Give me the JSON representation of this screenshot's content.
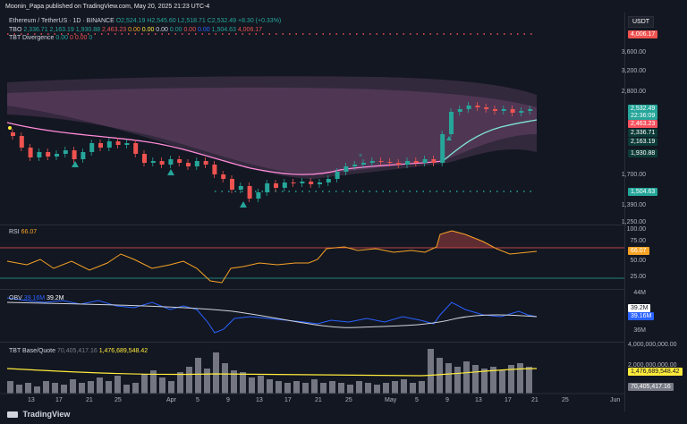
{
  "header": {
    "publisher": "Moonin_Papa published on TradingView.com, May 20, 2025 21:23 UTC-4"
  },
  "symbol": {
    "name": "Ethereum / TetherUS · 1D · BINANCE",
    "o": "O2,524.19",
    "h": "H2,545.60",
    "l": "L2,518.71",
    "c": "C2,532.49",
    "chg": "+8.30 (+0.33%)"
  },
  "indicators": {
    "tbo": {
      "name": "TBO",
      "values": [
        "2,336.71",
        "2,163.19",
        "1,930.88",
        "2,463.23",
        "0.00",
        "0.00",
        "0.00",
        "0.00",
        "0.00",
        "0.00",
        "1,504.63",
        "4,006.17"
      ]
    },
    "div": {
      "name": "TBT Divergence",
      "values": [
        "0.00",
        "0",
        "0.00",
        "0"
      ]
    },
    "rsi": {
      "name": "RSI",
      "value": "66.07"
    },
    "obv": {
      "name": "OBV",
      "v1": "39.16M",
      "v2": "39.2M"
    },
    "base": {
      "name": "TBT Base/Quote",
      "v1": "70,405,417.16",
      "v2": "1,476,689,548.42"
    }
  },
  "currency": "USDT",
  "price_axis": [
    "3,600.00",
    "3,200.00",
    "2,800.00",
    "1,700.00",
    "1,390.00",
    "1,250.00"
  ],
  "price_tags": {
    "top": "4,006.17",
    "close": "2,532.49",
    "timer": "22:36:09",
    "red": "2,463.23",
    "tbo1": "2,336.71",
    "tbo2": "2,163.19",
    "tbo3": "1,930.88",
    "green": "1,504.63"
  },
  "rsi_axis": [
    "100.00",
    "75.00",
    "50.00",
    "25.00"
  ],
  "obv_axis": [
    "44M",
    "36M"
  ],
  "obv_tags": {
    "a": "39.2M",
    "b": "39.16M"
  },
  "base_axis": [
    "4,000,000,000.00",
    "2,000,000,000.00"
  ],
  "base_tags": {
    "a": "1,476,689,548.42",
    "b": "70,405,417.16"
  },
  "x_axis": [
    "13",
    "17",
    "21",
    "25",
    "Apr",
    "5",
    "9",
    "13",
    "17",
    "21",
    "25",
    "May",
    "5",
    "9",
    "13",
    "17",
    "21",
    "25",
    "Jun"
  ],
  "footer": {
    "brand": "TradingView"
  },
  "colors": {
    "up": "#26a69a",
    "down": "#ef5350",
    "ema": "#ff8ad8",
    "rsi": "#f7a325",
    "obv": "#2962ff",
    "obvsma": "#d1d4dc",
    "vol": "#787b86",
    "volma": "#ffeb3b"
  }
}
